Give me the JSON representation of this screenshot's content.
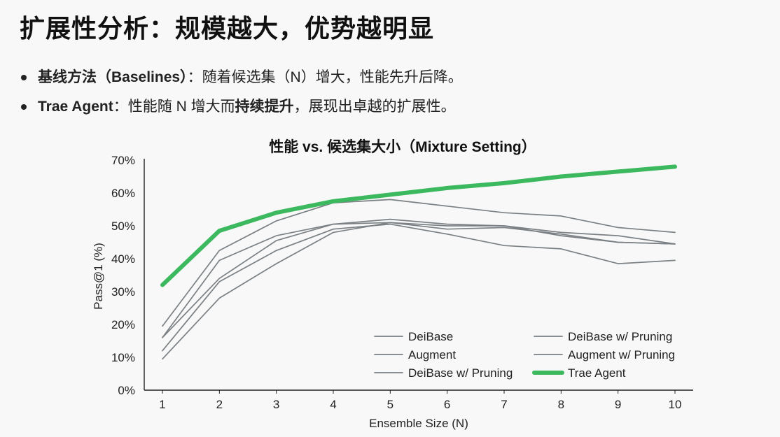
{
  "slide": {
    "title": "扩展性分析：规模越大，优势越明显",
    "bullets": [
      {
        "lead": "基线方法（Baselines）",
        "sep": "：",
        "text": "随着候选集（N）增大，性能先升后降。",
        "strong": "",
        "tail": ""
      },
      {
        "lead": "Trae Agent",
        "sep": "：",
        "text": "性能随 N 增大而",
        "strong": "持续提升",
        "tail": "，展现出卓越的扩展性。"
      }
    ]
  },
  "colors": {
    "accent": "#3cb95f",
    "baseline": "#7b8085",
    "axis": "#222222"
  },
  "chart_data": {
    "type": "line",
    "title": "性能 vs. 候选集大小（Mixture Setting）",
    "xlabel": "Ensemble Size (N)",
    "ylabel": "Pass@1 (%)",
    "x": [
      1,
      2,
      3,
      4,
      5,
      6,
      7,
      8,
      9,
      10
    ],
    "ylim": [
      0,
      70
    ],
    "yticks": [
      "0%",
      "10%",
      "20%",
      "30%",
      "40%",
      "50%",
      "60%",
      "70%"
    ],
    "grid": false,
    "legend_position": "bottom-right",
    "series": [
      {
        "name": "DeiBase",
        "values": [
          19.5,
          42.5,
          51.5,
          57,
          58,
          56,
          54,
          53,
          49.5,
          48
        ]
      },
      {
        "name": "DeiBase w/ Pruning",
        "values": [
          16,
          39.5,
          47,
          50.5,
          52,
          50.5,
          50,
          48,
          47,
          44.5
        ]
      },
      {
        "name": "Augment",
        "values": [
          16,
          34,
          45.5,
          50.5,
          51,
          49,
          49.5,
          47.5,
          45,
          44.5
        ]
      },
      {
        "name": "Augment w/ Pruning",
        "values": [
          12,
          33,
          42.5,
          49,
          50.5,
          47.5,
          44,
          43,
          38.5,
          39.5
        ]
      },
      {
        "name": "DeiBase w/ Pruning",
        "values": [
          9.5,
          28,
          38.5,
          48,
          51,
          50,
          50,
          47,
          45,
          44.5
        ]
      },
      {
        "name": "Trae Agent",
        "values": [
          32,
          48.5,
          54,
          57.5,
          59.5,
          61.5,
          63,
          65,
          66.5,
          68
        ]
      }
    ]
  }
}
